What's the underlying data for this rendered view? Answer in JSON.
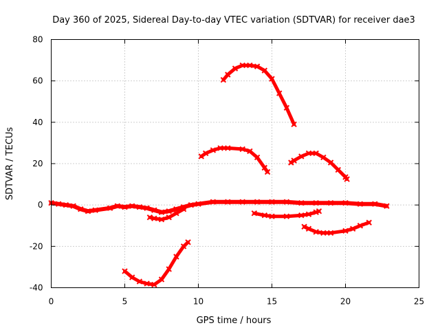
{
  "chart_data": {
    "type": "line",
    "title": "Day 360 of 2025, Sidereal Day-to-day VTEC variation (SDTVAR) for receiver dae3",
    "xlabel": "GPS time / hours",
    "ylabel": "SDTVAR / TECUs",
    "xlim": [
      0,
      25
    ],
    "ylim": [
      -40,
      80
    ],
    "xticks": [
      0,
      5,
      10,
      15,
      20,
      25
    ],
    "yticks": [
      -40,
      -20,
      0,
      20,
      40,
      60,
      80
    ],
    "grid": true,
    "color": "#ff0000",
    "series": [
      {
        "name": "main-trace",
        "points": [
          [
            0,
            1
          ],
          [
            0.5,
            0.5
          ],
          [
            1,
            0
          ],
          [
            1.5,
            -0.5
          ],
          [
            2,
            -2
          ],
          [
            2.5,
            -3
          ],
          [
            3,
            -2.5
          ],
          [
            4,
            -1.5
          ],
          [
            4.5,
            -0.5
          ],
          [
            5,
            -1
          ],
          [
            5.5,
            -0.5
          ],
          [
            6,
            -1
          ],
          [
            6.5,
            -1.5
          ],
          [
            7,
            -2.5
          ],
          [
            7.5,
            -3.5
          ],
          [
            8,
            -3
          ],
          [
            8.5,
            -2
          ],
          [
            9,
            -1
          ],
          [
            9.5,
            0
          ],
          [
            10,
            0.5
          ],
          [
            11,
            1.5
          ],
          [
            12,
            1.5
          ],
          [
            13,
            1.5
          ],
          [
            14,
            1.5
          ],
          [
            15,
            1.5
          ],
          [
            16,
            1.5
          ],
          [
            17,
            1
          ],
          [
            18,
            1
          ],
          [
            19,
            1
          ],
          [
            20,
            1
          ],
          [
            21,
            0.5
          ],
          [
            22,
            0.5
          ],
          [
            22.8,
            -0.5
          ]
        ]
      },
      {
        "name": "trace-b",
        "points": [
          [
            6.7,
            -6
          ],
          [
            7,
            -6.5
          ],
          [
            7.5,
            -7
          ],
          [
            8,
            -6
          ],
          [
            8.5,
            -4
          ],
          [
            9,
            -2
          ]
        ]
      },
      {
        "name": "trace-c",
        "points": [
          [
            5,
            -32
          ],
          [
            5.5,
            -35
          ],
          [
            6,
            -37
          ],
          [
            6.5,
            -38
          ],
          [
            7,
            -38.5
          ],
          [
            7.5,
            -36
          ],
          [
            8,
            -31
          ],
          [
            8.5,
            -25
          ],
          [
            9,
            -20
          ],
          [
            9.3,
            -18
          ]
        ]
      },
      {
        "name": "trace-d",
        "points": [
          [
            10.2,
            23.5
          ],
          [
            10.5,
            25
          ],
          [
            11,
            26.5
          ],
          [
            11.5,
            27.5
          ],
          [
            12,
            27.5
          ],
          [
            13,
            27
          ],
          [
            13.5,
            26
          ],
          [
            14,
            23
          ],
          [
            14.5,
            18
          ],
          [
            14.7,
            16
          ]
        ]
      },
      {
        "name": "trace-e",
        "points": [
          [
            11.7,
            60.5
          ],
          [
            12,
            63
          ],
          [
            12.5,
            66
          ],
          [
            13,
            67.5
          ],
          [
            13.5,
            67.5
          ],
          [
            14,
            67
          ],
          [
            14.5,
            65
          ],
          [
            15,
            61
          ],
          [
            15.5,
            54
          ],
          [
            16,
            47
          ],
          [
            16.5,
            39
          ]
        ]
      },
      {
        "name": "trace-f",
        "points": [
          [
            16.3,
            20.5
          ],
          [
            16.5,
            21.5
          ],
          [
            17,
            23.5
          ],
          [
            17.5,
            25
          ],
          [
            18,
            25
          ],
          [
            18.5,
            23
          ],
          [
            19,
            20.5
          ],
          [
            19.5,
            17
          ],
          [
            20,
            13.5
          ],
          [
            20.1,
            12.5
          ]
        ]
      },
      {
        "name": "trace-g",
        "points": [
          [
            13.8,
            -4
          ],
          [
            14.5,
            -5
          ],
          [
            15,
            -5.5
          ],
          [
            16,
            -5.5
          ],
          [
            17,
            -5
          ],
          [
            17.5,
            -4.5
          ],
          [
            18,
            -3.5
          ],
          [
            18.2,
            -3
          ]
        ]
      },
      {
        "name": "trace-h",
        "points": [
          [
            17.2,
            -10.5
          ],
          [
            17.5,
            -11.5
          ],
          [
            18,
            -13
          ],
          [
            18.5,
            -13.5
          ],
          [
            19,
            -13.5
          ],
          [
            20,
            -12.5
          ],
          [
            20.5,
            -11.5
          ],
          [
            21,
            -10
          ],
          [
            21.6,
            -8.5
          ]
        ]
      }
    ]
  }
}
